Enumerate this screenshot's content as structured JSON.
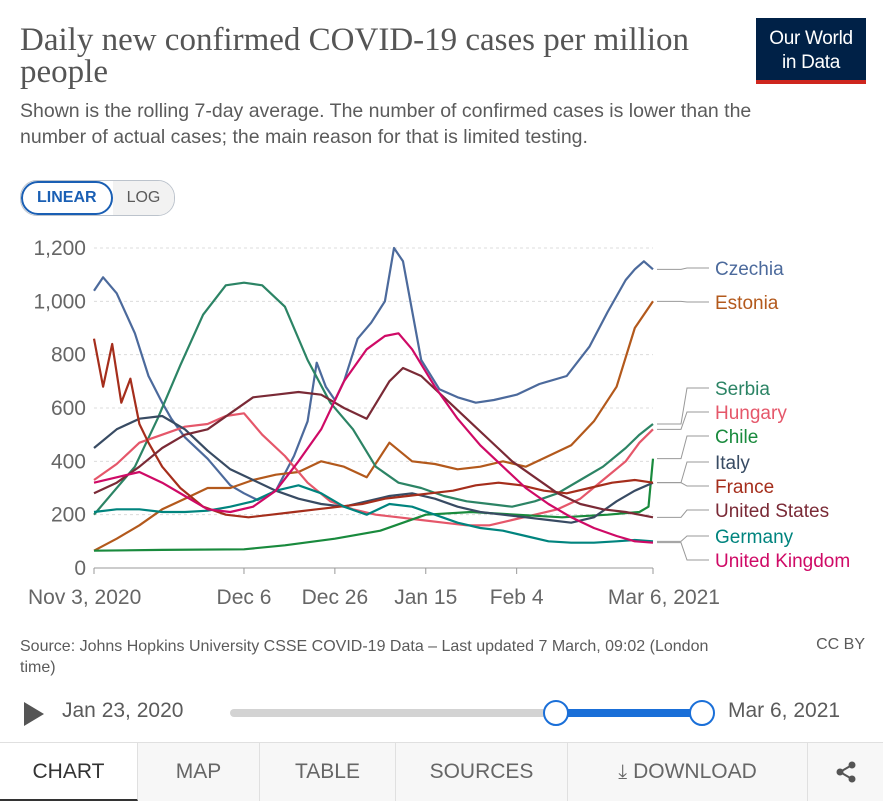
{
  "header": {
    "title": "Daily new confirmed COVID-19 cases per million people",
    "subtitle": "Shown is the rolling 7-day average. The number of confirmed cases is lower than the number of actual cases; the main reason for that is limited testing.",
    "logo_line1": "Our World",
    "logo_line2": "in Data"
  },
  "scale_toggle": {
    "linear": "LINEAR",
    "log": "LOG",
    "selected": "LINEAR"
  },
  "chart_data": {
    "type": "line",
    "title": "Daily new confirmed COVID-19 cases per million people",
    "ylim": [
      0,
      1200
    ],
    "yticks": [
      0,
      200,
      400,
      600,
      800,
      1000,
      1200
    ],
    "ytick_labels": [
      "0",
      "200",
      "400",
      "600",
      "800",
      "1,000",
      "1,200"
    ],
    "xlim": [
      "2020-11-03",
      "2021-03-06"
    ],
    "xticks": [
      "2020-11-03",
      "2020-12-06",
      "2020-12-26",
      "2021-01-15",
      "2021-02-04",
      "2021-03-06"
    ],
    "xtick_labels": [
      "Nov 3, 2020",
      "Dec 6",
      "Dec 26",
      "Jan 15",
      "Feb 4",
      "Mar 6, 2021"
    ],
    "grid": "horizontal dashed",
    "legend": "right (line-end labels)",
    "series": [
      {
        "name": "Czechia",
        "color": "#4c6a9c",
        "x": [
          "2020-11-03",
          "2020-11-05",
          "2020-11-08",
          "2020-11-12",
          "2020-11-15",
          "2020-11-18",
          "2020-11-20",
          "2020-11-23",
          "2020-11-28",
          "2020-12-03",
          "2020-12-06",
          "2020-12-09",
          "2020-12-13",
          "2020-12-17",
          "2020-12-20",
          "2020-12-22",
          "2020-12-24",
          "2020-12-26",
          "2020-12-28",
          "2020-12-31",
          "2021-01-03",
          "2021-01-06",
          "2021-01-08",
          "2021-01-10",
          "2021-01-14",
          "2021-01-18",
          "2021-01-22",
          "2021-01-26",
          "2021-01-30",
          "2021-02-04",
          "2021-02-09",
          "2021-02-15",
          "2021-02-20",
          "2021-02-24",
          "2021-02-28",
          "2021-03-02",
          "2021-03-04",
          "2021-03-06"
        ],
        "values": [
          1040,
          1090,
          1030,
          880,
          720,
          620,
          560,
          490,
          410,
          310,
          280,
          255,
          290,
          420,
          550,
          770,
          680,
          630,
          700,
          860,
          920,
          1000,
          1200,
          1150,
          780,
          670,
          640,
          620,
          630,
          650,
          690,
          720,
          830,
          960,
          1080,
          1120,
          1150,
          1120
        ]
      },
      {
        "name": "Estonia",
        "color": "#b3591c",
        "x": [
          "2020-11-03",
          "2020-11-08",
          "2020-11-13",
          "2020-11-18",
          "2020-11-23",
          "2020-11-28",
          "2020-12-03",
          "2020-12-08",
          "2020-12-13",
          "2020-12-18",
          "2020-12-23",
          "2020-12-28",
          "2021-01-02",
          "2021-01-07",
          "2021-01-12",
          "2021-01-17",
          "2021-01-22",
          "2021-01-27",
          "2021-02-01",
          "2021-02-06",
          "2021-02-11",
          "2021-02-16",
          "2021-02-21",
          "2021-02-26",
          "2021-03-02",
          "2021-03-06"
        ],
        "values": [
          65,
          110,
          160,
          220,
          260,
          300,
          300,
          330,
          350,
          360,
          400,
          380,
          340,
          470,
          400,
          390,
          370,
          380,
          400,
          380,
          420,
          460,
          550,
          680,
          900,
          1000
        ]
      },
      {
        "name": "Serbia",
        "color": "#2c8465",
        "x": [
          "2020-11-03",
          "2020-11-07",
          "2020-11-12",
          "2020-11-17",
          "2020-11-22",
          "2020-11-27",
          "2020-12-02",
          "2020-12-06",
          "2020-12-10",
          "2020-12-15",
          "2020-12-20",
          "2020-12-25",
          "2020-12-30",
          "2021-01-04",
          "2021-01-09",
          "2021-01-14",
          "2021-01-19",
          "2021-01-24",
          "2021-01-29",
          "2021-02-03",
          "2021-02-08",
          "2021-02-13",
          "2021-02-18",
          "2021-02-23",
          "2021-02-28",
          "2021-03-03",
          "2021-03-06"
        ],
        "values": [
          200,
          280,
          380,
          560,
          760,
          950,
          1060,
          1070,
          1060,
          980,
          780,
          620,
          520,
          380,
          320,
          300,
          270,
          250,
          240,
          230,
          250,
          280,
          330,
          380,
          450,
          500,
          540
        ]
      },
      {
        "name": "Hungary",
        "color": "#e5576a",
        "x": [
          "2020-11-03",
          "2020-11-08",
          "2020-11-13",
          "2020-11-18",
          "2020-11-23",
          "2020-11-28",
          "2020-12-02",
          "2020-12-06",
          "2020-12-10",
          "2020-12-15",
          "2020-12-20",
          "2020-12-25",
          "2020-12-30",
          "2021-01-04",
          "2021-01-09",
          "2021-01-14",
          "2021-01-19",
          "2021-01-24",
          "2021-01-29",
          "2021-02-03",
          "2021-02-08",
          "2021-02-13",
          "2021-02-18",
          "2021-02-23",
          "2021-02-28",
          "2021-03-03",
          "2021-03-06"
        ],
        "values": [
          330,
          390,
          470,
          500,
          530,
          540,
          570,
          580,
          500,
          420,
          320,
          250,
          220,
          200,
          190,
          180,
          170,
          160,
          160,
          180,
          200,
          220,
          260,
          330,
          400,
          470,
          520
        ]
      },
      {
        "name": "Chile",
        "color": "#198a3d",
        "x": [
          "2020-11-03",
          "2020-11-18",
          "2020-12-06",
          "2020-12-15",
          "2020-12-26",
          "2021-01-05",
          "2021-01-15",
          "2021-01-25",
          "2021-02-04",
          "2021-02-14",
          "2021-02-24",
          "2021-03-03",
          "2021-03-05",
          "2021-03-06"
        ],
        "values": [
          65,
          68,
          70,
          85,
          110,
          140,
          200,
          210,
          200,
          190,
          200,
          210,
          230,
          410
        ]
      },
      {
        "name": "Italy",
        "color": "#384b63",
        "x": [
          "2020-11-03",
          "2020-11-08",
          "2020-11-13",
          "2020-11-18",
          "2020-11-23",
          "2020-11-28",
          "2020-12-03",
          "2020-12-08",
          "2020-12-13",
          "2020-12-18",
          "2020-12-23",
          "2020-12-28",
          "2021-01-02",
          "2021-01-07",
          "2021-01-12",
          "2021-01-17",
          "2021-01-22",
          "2021-01-27",
          "2021-02-01",
          "2021-02-06",
          "2021-02-11",
          "2021-02-16",
          "2021-02-21",
          "2021-02-26",
          "2021-03-02",
          "2021-03-06"
        ],
        "values": [
          450,
          520,
          560,
          570,
          520,
          440,
          370,
          330,
          290,
          260,
          240,
          230,
          250,
          270,
          280,
          260,
          230,
          210,
          200,
          190,
          180,
          170,
          190,
          250,
          290,
          320
        ]
      },
      {
        "name": "France",
        "color": "#a52e1c",
        "x": [
          "2020-11-03",
          "2020-11-05",
          "2020-11-07",
          "2020-11-09",
          "2020-11-11",
          "2020-11-13",
          "2020-11-15",
          "2020-11-18",
          "2020-11-22",
          "2020-11-27",
          "2020-12-02",
          "2020-12-07",
          "2020-12-12",
          "2020-12-17",
          "2020-12-22",
          "2020-12-27",
          "2021-01-01",
          "2021-01-06",
          "2021-01-11",
          "2021-01-16",
          "2021-01-21",
          "2021-01-26",
          "2021-01-31",
          "2021-02-05",
          "2021-02-10",
          "2021-02-15",
          "2021-02-20",
          "2021-02-25",
          "2021-03-02",
          "2021-03-06"
        ],
        "values": [
          860,
          680,
          840,
          620,
          710,
          540,
          470,
          380,
          300,
          230,
          200,
          190,
          200,
          210,
          220,
          230,
          240,
          260,
          270,
          280,
          290,
          310,
          320,
          310,
          290,
          280,
          300,
          320,
          330,
          320
        ]
      },
      {
        "name": "United States",
        "color": "#7a2a36",
        "x": [
          "2020-11-03",
          "2020-11-08",
          "2020-11-13",
          "2020-11-18",
          "2020-11-23",
          "2020-11-28",
          "2020-12-03",
          "2020-12-08",
          "2020-12-13",
          "2020-12-18",
          "2020-12-23",
          "2020-12-28",
          "2021-01-02",
          "2021-01-07",
          "2021-01-10",
          "2021-01-14",
          "2021-01-19",
          "2021-01-24",
          "2021-01-29",
          "2021-02-03",
          "2021-02-08",
          "2021-02-13",
          "2021-02-18",
          "2021-02-23",
          "2021-02-28",
          "2021-03-03",
          "2021-03-06"
        ],
        "values": [
          280,
          320,
          380,
          450,
          500,
          520,
          580,
          640,
          650,
          660,
          650,
          600,
          560,
          700,
          750,
          720,
          640,
          560,
          480,
          400,
          340,
          280,
          240,
          220,
          210,
          200,
          190
        ]
      },
      {
        "name": "Germany",
        "color": "#00847e",
        "x": [
          "2020-11-03",
          "2020-11-08",
          "2020-11-13",
          "2020-11-18",
          "2020-11-23",
          "2020-11-28",
          "2020-12-03",
          "2020-12-08",
          "2020-12-13",
          "2020-12-18",
          "2020-12-23",
          "2020-12-28",
          "2021-01-02",
          "2021-01-07",
          "2021-01-12",
          "2021-01-17",
          "2021-01-22",
          "2021-01-27",
          "2021-02-01",
          "2021-02-06",
          "2021-02-11",
          "2021-02-16",
          "2021-02-21",
          "2021-02-26",
          "2021-03-02",
          "2021-03-06"
        ],
        "values": [
          210,
          220,
          220,
          210,
          210,
          215,
          230,
          250,
          290,
          310,
          280,
          230,
          200,
          240,
          230,
          200,
          170,
          150,
          140,
          120,
          100,
          95,
          95,
          100,
          105,
          100
        ]
      },
      {
        "name": "United Kingdom",
        "color": "#cf0a66",
        "x": [
          "2020-11-03",
          "2020-11-08",
          "2020-11-13",
          "2020-11-18",
          "2020-11-23",
          "2020-11-28",
          "2020-12-03",
          "2020-12-08",
          "2020-12-13",
          "2020-12-18",
          "2020-12-23",
          "2020-12-28",
          "2021-01-02",
          "2021-01-06",
          "2021-01-09",
          "2021-01-12",
          "2021-01-17",
          "2021-01-22",
          "2021-01-27",
          "2021-02-01",
          "2021-02-06",
          "2021-02-11",
          "2021-02-16",
          "2021-02-21",
          "2021-02-26",
          "2021-03-02",
          "2021-03-06"
        ],
        "values": [
          320,
          340,
          360,
          320,
          270,
          220,
          210,
          230,
          290,
          400,
          520,
          700,
          820,
          870,
          880,
          820,
          680,
          560,
          460,
          380,
          300,
          240,
          190,
          150,
          120,
          100,
          95
        ]
      }
    ]
  },
  "source": {
    "text": "Source: Johns Hopkins University CSSE COVID-19 Data – Last updated 7 March, 09:02 (London time)",
    "license": "CC BY"
  },
  "timeline": {
    "start_label": "Jan 23, 2020",
    "end_label": "Mar 6, 2021",
    "range_start_fraction": 0.69,
    "range_end_fraction": 1.0
  },
  "tabs": [
    {
      "label": "CHART",
      "active": true
    },
    {
      "label": "MAP"
    },
    {
      "label": "TABLE"
    },
    {
      "label": "SOURCES"
    },
    {
      "label": "DOWNLOAD",
      "icon": "download-icon"
    },
    {
      "label": "",
      "icon": "share-icon"
    }
  ]
}
